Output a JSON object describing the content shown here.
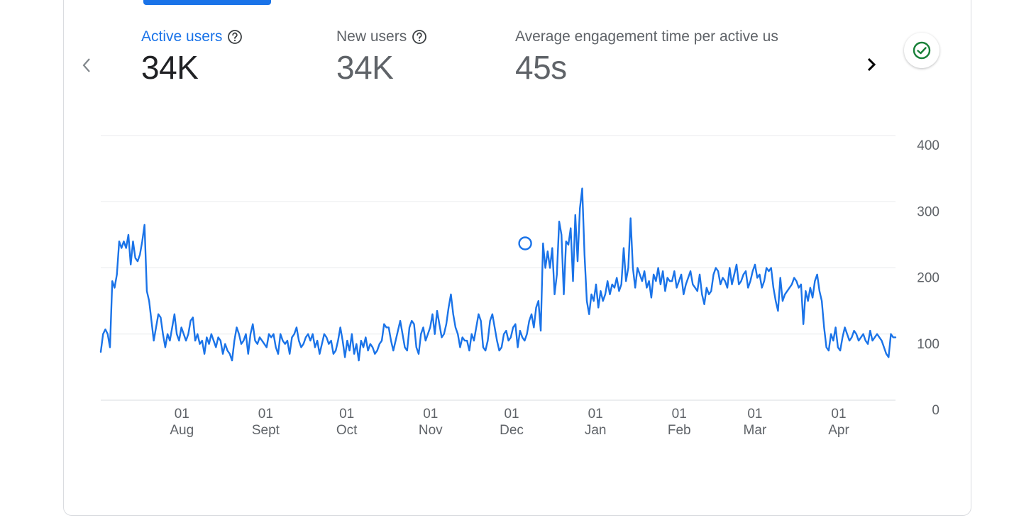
{
  "metrics": [
    {
      "label": "Active users",
      "value": "34K"
    },
    {
      "label": "New users",
      "value": "34K"
    },
    {
      "label": "Average engagement time per active us",
      "value": "45s"
    }
  ],
  "icons": {
    "prev": "chevron-left-icon",
    "next": "chevron-right-icon",
    "help": "help-circle-icon",
    "status": "check-circle-icon"
  },
  "colors": {
    "accent": "#1a73e8",
    "line": "#1a73e8",
    "status_green": "#188038"
  },
  "chart_data": {
    "type": "line",
    "ylim": [
      0,
      400
    ],
    "yticks": [
      0,
      100,
      200,
      300,
      400
    ],
    "y_axis_position": "right",
    "grid": true,
    "xticks": [
      {
        "day": "01",
        "month": "Aug"
      },
      {
        "day": "01",
        "month": "Sept"
      },
      {
        "day": "01",
        "month": "Oct"
      },
      {
        "day": "01",
        "month": "Nov"
      },
      {
        "day": "01",
        "month": "Dec"
      },
      {
        "day": "01",
        "month": "Jan"
      },
      {
        "day": "01",
        "month": "Feb"
      },
      {
        "day": "01",
        "month": "Mar"
      },
      {
        "day": "01",
        "month": "Apr"
      }
    ],
    "x_start": "2022-07-02",
    "x_end": "2023-04-22",
    "highlight": {
      "date": "2022-12-06",
      "value": 237
    },
    "series": [
      {
        "values": [
          73,
          100,
          107,
          100,
          80,
          180,
          170,
          190,
          240,
          230,
          240,
          230,
          250,
          205,
          240,
          215,
          210,
          220,
          240,
          265,
          165,
          150,
          120,
          90,
          110,
          130,
          125,
          100,
          80,
          100,
          90,
          110,
          130,
          100,
          90,
          110,
          100,
          90,
          100,
          120,
          125,
          90,
          100,
          85,
          90,
          70,
          95,
          85,
          100,
          90,
          80,
          95,
          90,
          70,
          85,
          75,
          70,
          60,
          90,
          110,
          100,
          85,
          90,
          100,
          70,
          100,
          115,
          90,
          85,
          95,
          90,
          85,
          80,
          100,
          95,
          100,
          80,
          70,
          100,
          90,
          85,
          90,
          70,
          95,
          100,
          110,
          90,
          80,
          85,
          95,
          100,
          90,
          100,
          80,
          90,
          70,
          85,
          100,
          95,
          85,
          90,
          70,
          75,
          90,
          110,
          90,
          65,
          90,
          75,
          100,
          70,
          85,
          60,
          90,
          80,
          95,
          75,
          85,
          80,
          70,
          75,
          85,
          90,
          115,
          110,
          110,
          90,
          75,
          90,
          105,
          120,
          100,
          80,
          75,
          110,
          120,
          115,
          80,
          70,
          100,
          110,
          90,
          100,
          110,
          130,
          100,
          135,
          115,
          95,
          100,
          115,
          140,
          160,
          130,
          110,
          100,
          80,
          95,
          90,
          90,
          75,
          100,
          90,
          110,
          130,
          120,
          80,
          75,
          90,
          120,
          130,
          110,
          90,
          75,
          80,
          100,
          105,
          90,
          95,
          110,
          115,
          80,
          105,
          95,
          90,
          100,
          120,
          130,
          110,
          140,
          150,
          105,
          237,
          200,
          225,
          200,
          230,
          160,
          190,
          270,
          250,
          160,
          240,
          235,
          260,
          180,
          280,
          210,
          290,
          320,
          220,
          150,
          130,
          160,
          150,
          175,
          140,
          165,
          150,
          160,
          180,
          160,
          175,
          170,
          185,
          165,
          175,
          230,
          180,
          200,
          275,
          200,
          170,
          200,
          190,
          180,
          195,
          170,
          180,
          155,
          190,
          180,
          200,
          175,
          195,
          165,
          185,
          180,
          180,
          195,
          170,
          180,
          190,
          160,
          175,
          185,
          195,
          175,
          170,
          165,
          190,
          160,
          145,
          170,
          160,
          165,
          190,
          200,
          195,
          175,
          185,
          180,
          170,
          200,
          175,
          190,
          205,
          175,
          180,
          190,
          195,
          170,
          180,
          195,
          205,
          185,
          190,
          170,
          180,
          200,
          195,
          200,
          170,
          150,
          135,
          185,
          150,
          160,
          165,
          170,
          175,
          185,
          180,
          170,
          175,
          115,
          165,
          150,
          170,
          155,
          180,
          190,
          165,
          150,
          110,
          80,
          75,
          100,
          90,
          110,
          80,
          75,
          95,
          110,
          100,
          90,
          95,
          105,
          100,
          90,
          95,
          100,
          90,
          85,
          105,
          90,
          95,
          100,
          95,
          90,
          80,
          70,
          65,
          100,
          95,
          95
        ]
      }
    ]
  }
}
